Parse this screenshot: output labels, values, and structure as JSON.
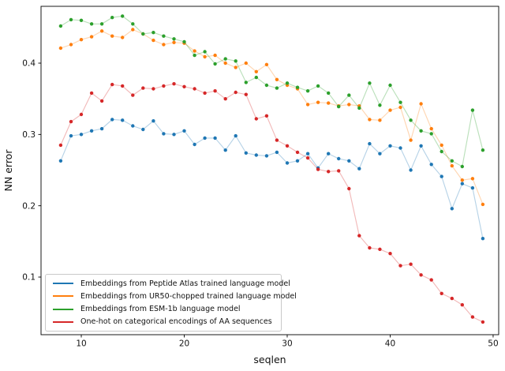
{
  "chart_data": {
    "type": "line",
    "title": "",
    "xlabel": "seqlen",
    "ylabel": "NN error",
    "grid": false,
    "legend_position": "lower left",
    "marker": "point",
    "axis_color": "#000000",
    "x_ticks": [
      10,
      20,
      30,
      40,
      50
    ],
    "y_ticks": [
      0.1,
      0.2,
      0.3,
      0.4
    ],
    "xlim": [
      6.09,
      50.54
    ],
    "ylim": [
      0.0192,
      0.4797
    ],
    "x": [
      8,
      9,
      10,
      11,
      12,
      13,
      14,
      15,
      16,
      17,
      18,
      19,
      20,
      21,
      22,
      23,
      24,
      25,
      26,
      27,
      28,
      29,
      30,
      31,
      32,
      33,
      34,
      35,
      36,
      37,
      38,
      39,
      40,
      41,
      42,
      43,
      44,
      45,
      46,
      47,
      48,
      49
    ],
    "series": [
      {
        "name": "Embeddings from Peptide Atlas trained language model",
        "color": "#1f77b4",
        "values": [
          0.263,
          0.298,
          0.3,
          0.305,
          0.308,
          0.321,
          0.32,
          0.312,
          0.307,
          0.319,
          0.301,
          0.3,
          0.305,
          0.286,
          0.295,
          0.295,
          0.278,
          0.298,
          0.274,
          0.271,
          0.27,
          0.275,
          0.26,
          0.263,
          0.273,
          0.253,
          0.273,
          0.266,
          0.263,
          0.252,
          0.287,
          0.273,
          0.284,
          0.281,
          0.25,
          0.284,
          0.258,
          0.241,
          0.196,
          0.231,
          0.225,
          0.154
        ]
      },
      {
        "name": "Embeddings from UR50-chopped trained language model",
        "color": "#ff7f0e",
        "values": [
          0.421,
          0.426,
          0.433,
          0.437,
          0.445,
          0.438,
          0.436,
          0.447,
          0.441,
          0.432,
          0.426,
          0.429,
          0.428,
          0.417,
          0.409,
          0.411,
          0.4,
          0.394,
          0.4,
          0.388,
          0.398,
          0.377,
          0.369,
          0.364,
          0.342,
          0.345,
          0.344,
          0.34,
          0.342,
          0.34,
          0.321,
          0.32,
          0.334,
          0.338,
          0.292,
          0.343,
          0.308,
          0.285,
          0.256,
          0.236,
          0.238,
          0.202
        ]
      },
      {
        "name": "Embeddings from ESM-1b language model",
        "color": "#2ca02c",
        "values": [
          0.452,
          0.461,
          0.46,
          0.455,
          0.455,
          0.464,
          0.466,
          0.455,
          0.441,
          0.443,
          0.438,
          0.434,
          0.43,
          0.411,
          0.416,
          0.399,
          0.406,
          0.403,
          0.373,
          0.38,
          0.369,
          0.365,
          0.372,
          0.366,
          0.361,
          0.368,
          0.358,
          0.339,
          0.355,
          0.337,
          0.372,
          0.341,
          0.369,
          0.345,
          0.32,
          0.305,
          0.301,
          0.276,
          0.263,
          0.255,
          0.334,
          0.278
        ]
      },
      {
        "name": "One-hot on categorical encodings of AA sequences",
        "color": "#d62728",
        "values": [
          0.285,
          0.318,
          0.328,
          0.358,
          0.347,
          0.37,
          0.368,
          0.355,
          0.365,
          0.364,
          0.368,
          0.371,
          0.367,
          0.364,
          0.358,
          0.361,
          0.35,
          0.359,
          0.356,
          0.322,
          0.326,
          0.292,
          0.284,
          0.275,
          0.267,
          0.251,
          0.248,
          0.249,
          0.224,
          0.158,
          0.141,
          0.139,
          0.133,
          0.116,
          0.118,
          0.103,
          0.096,
          0.077,
          0.07,
          0.061,
          0.044,
          0.037
        ]
      }
    ]
  }
}
